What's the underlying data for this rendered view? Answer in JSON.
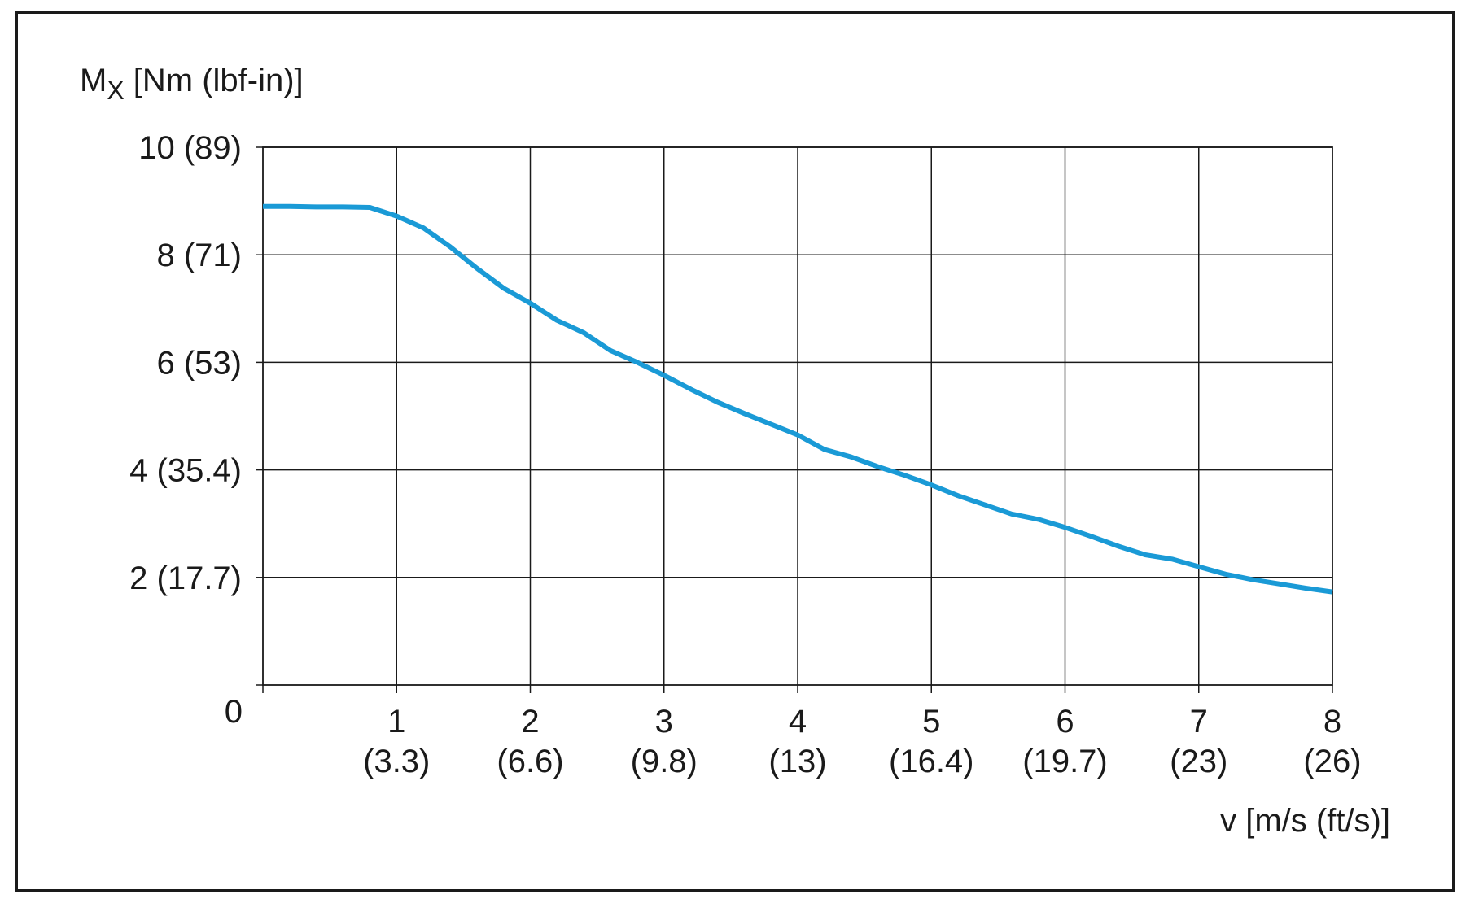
{
  "chart_data": {
    "type": "line",
    "xlabel": "v [m/s (ft/s)]",
    "ylabel_main": "M",
    "ylabel_sub": "X",
    "ylabel_rest": " [Nm (lbf-in)]",
    "xlim": [
      0,
      8
    ],
    "ylim": [
      0,
      10
    ],
    "grid": true,
    "line_color": "#1a9ad6",
    "x_ticks": [
      {
        "value": 1,
        "label": "1",
        "sublabel": "(3.3)"
      },
      {
        "value": 2,
        "label": "2",
        "sublabel": "(6.6)"
      },
      {
        "value": 3,
        "label": "3",
        "sublabel": "(9.8)"
      },
      {
        "value": 4,
        "label": "4",
        "sublabel": "(13)"
      },
      {
        "value": 5,
        "label": "5",
        "sublabel": "(16.4)"
      },
      {
        "value": 6,
        "label": "6",
        "sublabel": "(19.7)"
      },
      {
        "value": 7,
        "label": "7",
        "sublabel": "(23)"
      },
      {
        "value": 8,
        "label": "8",
        "sublabel": "(26)"
      }
    ],
    "y_ticks": [
      {
        "value": 0,
        "label": "0"
      },
      {
        "value": 2,
        "label": "2 (17.7)"
      },
      {
        "value": 4,
        "label": "4 (35.4)"
      },
      {
        "value": 6,
        "label": "6 (53)"
      },
      {
        "value": 8,
        "label": "8 (71)"
      },
      {
        "value": 10,
        "label": "10 (89)"
      }
    ],
    "series": [
      {
        "x": [
          0,
          0.2,
          0.4,
          0.6,
          0.8,
          1.0,
          1.2,
          1.4,
          1.6,
          1.8,
          2.0,
          2.2,
          2.4,
          2.6,
          2.8,
          3.0,
          3.2,
          3.4,
          3.6,
          3.8,
          4.0,
          4.2,
          4.4,
          4.6,
          4.8,
          5.0,
          5.2,
          5.4,
          5.6,
          5.8,
          6.0,
          6.2,
          6.4,
          6.6,
          6.8,
          7.0,
          7.2,
          7.4,
          7.6,
          7.8,
          8.0
        ],
        "y": [
          8.9,
          8.9,
          8.89,
          8.89,
          8.88,
          8.72,
          8.5,
          8.15,
          7.75,
          7.38,
          7.1,
          6.78,
          6.55,
          6.22,
          6.0,
          5.76,
          5.5,
          5.26,
          5.05,
          4.85,
          4.65,
          4.38,
          4.24,
          4.06,
          3.9,
          3.72,
          3.52,
          3.35,
          3.18,
          3.08,
          2.93,
          2.76,
          2.58,
          2.42,
          2.34,
          2.2,
          2.06,
          1.96,
          1.88,
          1.8,
          1.73
        ]
      }
    ]
  }
}
